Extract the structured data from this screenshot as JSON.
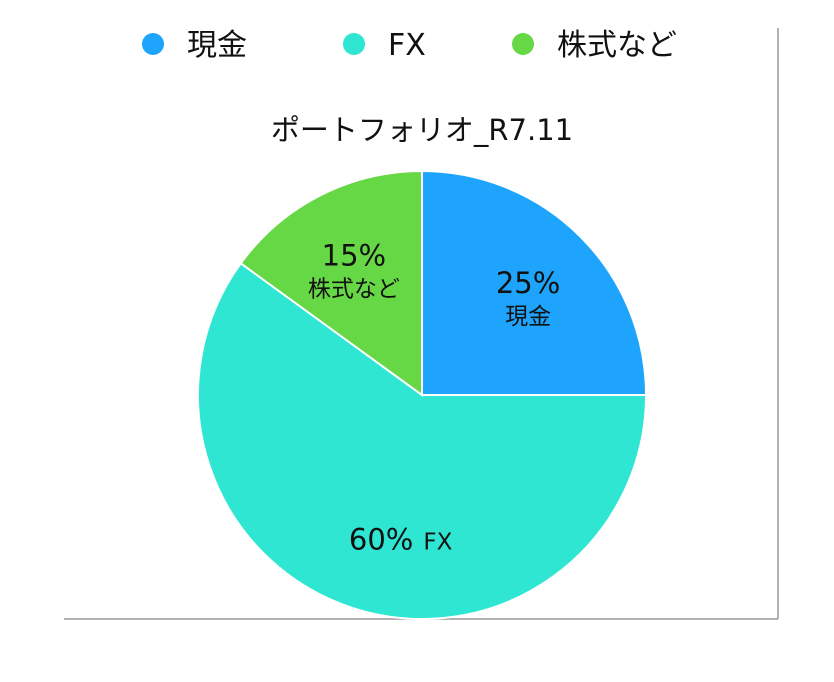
{
  "chart_data": {
    "type": "pie",
    "title": "ポートフォリオ_R7.11",
    "categories": [
      "現金",
      "FX",
      "株式など"
    ],
    "values": [
      25,
      60,
      15
    ],
    "labels": [
      "25%",
      "60%",
      "15%"
    ],
    "colors": [
      "#1EA4FC",
      "#2EE6D2",
      "#66D845"
    ],
    "start_angle": "12 o'clock, clockwise",
    "legend": "top",
    "grid": false
  }
}
